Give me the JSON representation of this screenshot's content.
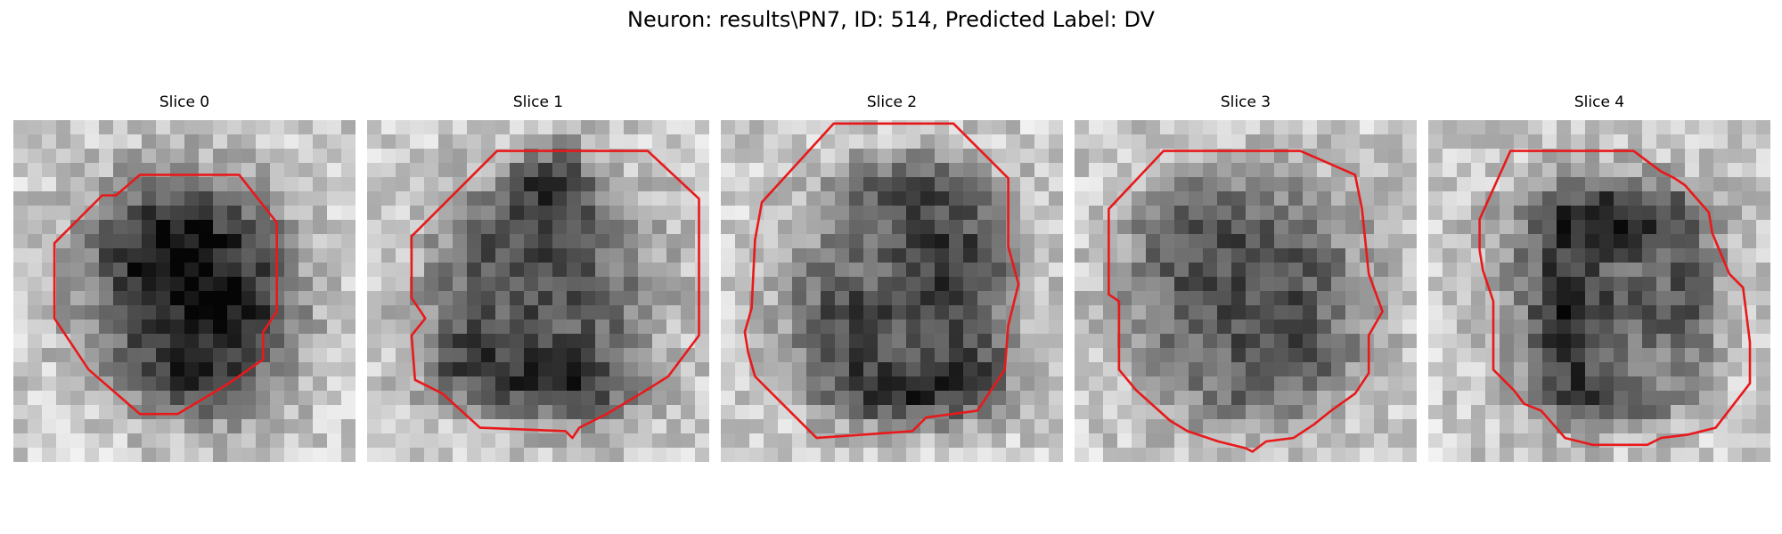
{
  "figure": {
    "title": "Neuron: results\\PN7, ID: 514, Predicted Label: DV"
  },
  "colors": {
    "contour": "#e8191b",
    "background": "#ffffff"
  },
  "panels": [
    {
      "title": "Slice 0",
      "seed": 11,
      "blobs": [
        [
          0.45,
          0.38,
          0.22,
          0.22,
          0.38
        ],
        [
          0.65,
          0.6,
          0.2,
          0.3,
          0.32
        ],
        [
          0.5,
          0.75,
          0.15,
          0.12,
          0.2
        ],
        [
          0.38,
          0.52,
          0.12,
          0.18,
          0.1
        ]
      ],
      "contour": [
        [
          0.37,
          0.16
        ],
        [
          0.66,
          0.16
        ],
        [
          0.77,
          0.3
        ],
        [
          0.77,
          0.56
        ],
        [
          0.73,
          0.62
        ],
        [
          0.73,
          0.7
        ],
        [
          0.63,
          0.77
        ],
        [
          0.48,
          0.86
        ],
        [
          0.37,
          0.86
        ],
        [
          0.22,
          0.73
        ],
        [
          0.2,
          0.7
        ],
        [
          0.12,
          0.58
        ],
        [
          0.12,
          0.36
        ],
        [
          0.26,
          0.22
        ],
        [
          0.3,
          0.22
        ]
      ]
    },
    {
      "title": "Slice 1",
      "seed": 29,
      "blobs": [
        [
          0.55,
          0.18,
          0.12,
          0.1,
          0.45
        ],
        [
          0.6,
          0.78,
          0.22,
          0.1,
          0.4
        ],
        [
          0.28,
          0.72,
          0.15,
          0.12,
          0.3
        ],
        [
          0.55,
          0.5,
          0.3,
          0.3,
          0.18
        ],
        [
          0.4,
          0.35,
          0.15,
          0.15,
          0.12
        ]
      ],
      "contour": [
        [
          0.38,
          0.09
        ],
        [
          0.82,
          0.09
        ],
        [
          0.97,
          0.23
        ],
        [
          0.97,
          0.63
        ],
        [
          0.88,
          0.75
        ],
        [
          0.8,
          0.8
        ],
        [
          0.7,
          0.86
        ],
        [
          0.62,
          0.9
        ],
        [
          0.6,
          0.93
        ],
        [
          0.58,
          0.91
        ],
        [
          0.33,
          0.9
        ],
        [
          0.22,
          0.8
        ],
        [
          0.14,
          0.76
        ],
        [
          0.13,
          0.63
        ],
        [
          0.17,
          0.58
        ],
        [
          0.13,
          0.52
        ],
        [
          0.13,
          0.34
        ]
      ]
    },
    {
      "title": "Slice 2",
      "seed": 47,
      "blobs": [
        [
          0.55,
          0.8,
          0.25,
          0.1,
          0.45
        ],
        [
          0.68,
          0.4,
          0.18,
          0.22,
          0.35
        ],
        [
          0.38,
          0.6,
          0.15,
          0.15,
          0.25
        ],
        [
          0.55,
          0.18,
          0.2,
          0.08,
          0.3
        ],
        [
          0.75,
          0.72,
          0.12,
          0.12,
          0.25
        ]
      ],
      "contour": [
        [
          0.33,
          0.01
        ],
        [
          0.68,
          0.01
        ],
        [
          0.84,
          0.17
        ],
        [
          0.84,
          0.37
        ],
        [
          0.87,
          0.48
        ],
        [
          0.84,
          0.6
        ],
        [
          0.83,
          0.73
        ],
        [
          0.75,
          0.85
        ],
        [
          0.6,
          0.87
        ],
        [
          0.56,
          0.91
        ],
        [
          0.28,
          0.93
        ],
        [
          0.1,
          0.75
        ],
        [
          0.08,
          0.68
        ],
        [
          0.07,
          0.62
        ],
        [
          0.09,
          0.55
        ],
        [
          0.1,
          0.35
        ],
        [
          0.12,
          0.24
        ]
      ]
    },
    {
      "title": "Slice 3",
      "seed": 73,
      "blobs": [
        [
          0.5,
          0.5,
          0.35,
          0.35,
          0.22
        ],
        [
          0.3,
          0.3,
          0.12,
          0.12,
          0.15
        ],
        [
          0.7,
          0.7,
          0.12,
          0.12,
          0.15
        ],
        [
          0.45,
          0.85,
          0.2,
          0.08,
          0.12
        ]
      ],
      "contour": [
        [
          0.26,
          0.09
        ],
        [
          0.66,
          0.09
        ],
        [
          0.82,
          0.16
        ],
        [
          0.84,
          0.26
        ],
        [
          0.86,
          0.45
        ],
        [
          0.9,
          0.56
        ],
        [
          0.86,
          0.63
        ],
        [
          0.86,
          0.74
        ],
        [
          0.82,
          0.8
        ],
        [
          0.75,
          0.85
        ],
        [
          0.7,
          0.89
        ],
        [
          0.64,
          0.93
        ],
        [
          0.56,
          0.94
        ],
        [
          0.52,
          0.97
        ],
        [
          0.5,
          0.96
        ],
        [
          0.42,
          0.94
        ],
        [
          0.33,
          0.91
        ],
        [
          0.28,
          0.88
        ],
        [
          0.18,
          0.79
        ],
        [
          0.13,
          0.73
        ],
        [
          0.13,
          0.53
        ],
        [
          0.1,
          0.51
        ],
        [
          0.1,
          0.26
        ]
      ]
    },
    {
      "title": "Slice 4",
      "seed": 97,
      "blobs": [
        [
          0.58,
          0.28,
          0.26,
          0.1,
          0.45
        ],
        [
          0.4,
          0.58,
          0.1,
          0.25,
          0.4
        ],
        [
          0.55,
          0.82,
          0.2,
          0.08,
          0.35
        ],
        [
          0.78,
          0.55,
          0.08,
          0.2,
          0.25
        ],
        [
          0.6,
          0.55,
          0.15,
          0.15,
          0.15
        ]
      ],
      "contour": [
        [
          0.24,
          0.09
        ],
        [
          0.6,
          0.09
        ],
        [
          0.68,
          0.15
        ],
        [
          0.72,
          0.17
        ],
        [
          0.75,
          0.19
        ],
        [
          0.82,
          0.27
        ],
        [
          0.83,
          0.33
        ],
        [
          0.88,
          0.45
        ],
        [
          0.92,
          0.49
        ],
        [
          0.94,
          0.65
        ],
        [
          0.94,
          0.77
        ],
        [
          0.84,
          0.9
        ],
        [
          0.76,
          0.92
        ],
        [
          0.68,
          0.93
        ],
        [
          0.64,
          0.95
        ],
        [
          0.48,
          0.95
        ],
        [
          0.4,
          0.93
        ],
        [
          0.33,
          0.85
        ],
        [
          0.28,
          0.83
        ],
        [
          0.25,
          0.79
        ],
        [
          0.19,
          0.73
        ],
        [
          0.19,
          0.53
        ],
        [
          0.16,
          0.44
        ],
        [
          0.15,
          0.38
        ],
        [
          0.15,
          0.29
        ]
      ]
    }
  ]
}
